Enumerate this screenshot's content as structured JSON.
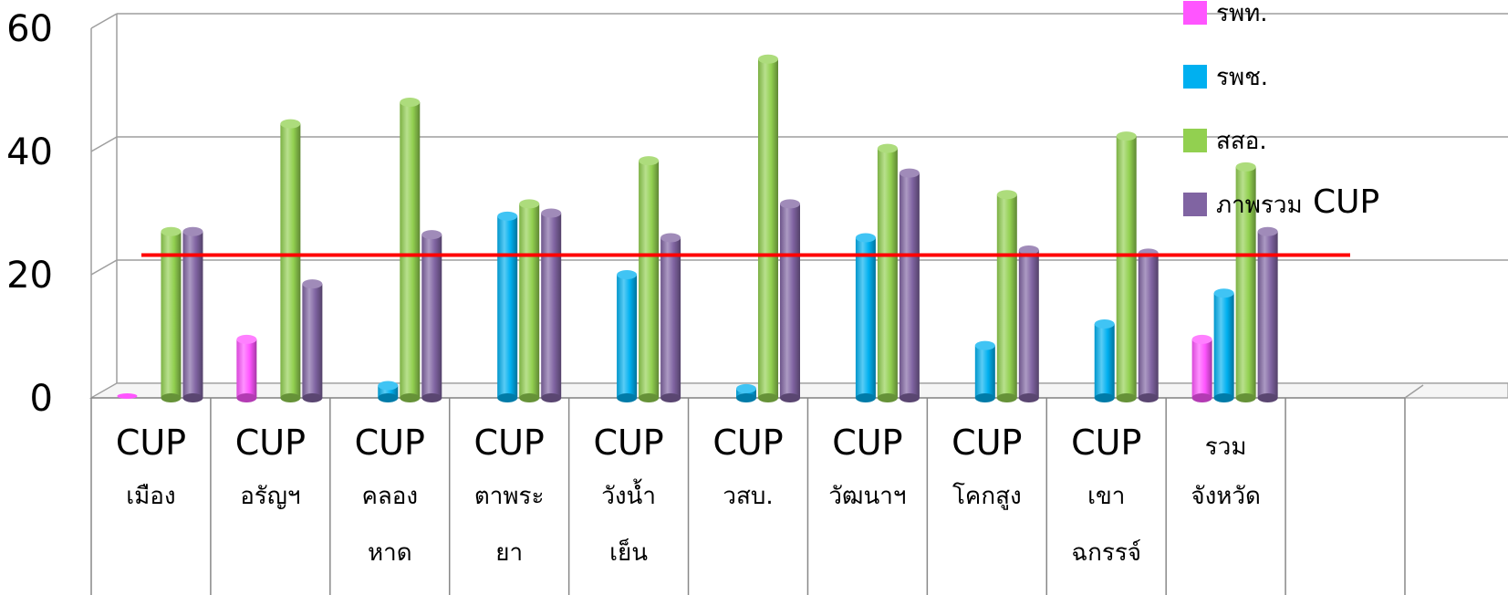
{
  "chart_data": {
    "type": "bar",
    "title": "",
    "xlabel": "",
    "ylabel": "",
    "ylim": [
      0,
      60
    ],
    "yticks": [
      "0",
      "20",
      "40",
      "60"
    ],
    "grid": true,
    "legend_position": "top-right",
    "categories": [
      {
        "line1": "CUP",
        "line2": "เมือง",
        "line3": ""
      },
      {
        "line1": "CUP",
        "line2": "อรัญฯ",
        "line3": ""
      },
      {
        "line1": "CUP",
        "line2": "คลอง",
        "line3": "หาด"
      },
      {
        "line1": "CUP",
        "line2": "ตาพระ",
        "line3": "ยา"
      },
      {
        "line1": "CUP",
        "line2": "วังน้ำ",
        "line3": "เย็น"
      },
      {
        "line1": "CUP",
        "line2": "วสบ.",
        "line3": ""
      },
      {
        "line1": "CUP",
        "line2": "วัฒนาฯ",
        "line3": ""
      },
      {
        "line1": "CUP",
        "line2": "โคกสูง",
        "line3": ""
      },
      {
        "line1": "CUP",
        "line2": "เขา",
        "line3": "ฉกรรจ์"
      },
      {
        "line1": "รวม",
        "line2": "จังหวัด",
        "line3": ""
      },
      {
        "line1": "",
        "line2": "",
        "line3": ""
      }
    ],
    "series": [
      {
        "name": "รพท.",
        "color": "#ff55ff",
        "values": [
          0,
          9.5,
          null,
          null,
          null,
          null,
          null,
          null,
          null,
          9.5,
          null
        ]
      },
      {
        "name": "รพช.",
        "color": "#00b0f0",
        "values": [
          null,
          null,
          2,
          29.5,
          20,
          1.5,
          26,
          8.5,
          12,
          17,
          null
        ]
      },
      {
        "name": "สสอ.",
        "color": "#92d050",
        "values": [
          27,
          44.5,
          48,
          31.5,
          38.5,
          55,
          40.5,
          33,
          42.5,
          37.5,
          null
        ]
      },
      {
        "name": "ภาพรวม",
        "name_suffix": "CUP",
        "color": "#8064a2",
        "values": [
          27,
          18.5,
          26.5,
          30,
          26,
          31.5,
          36.5,
          24,
          23.5,
          27,
          null
        ]
      }
    ],
    "target_line": {
      "value": 22,
      "color": "#ff0000"
    }
  }
}
